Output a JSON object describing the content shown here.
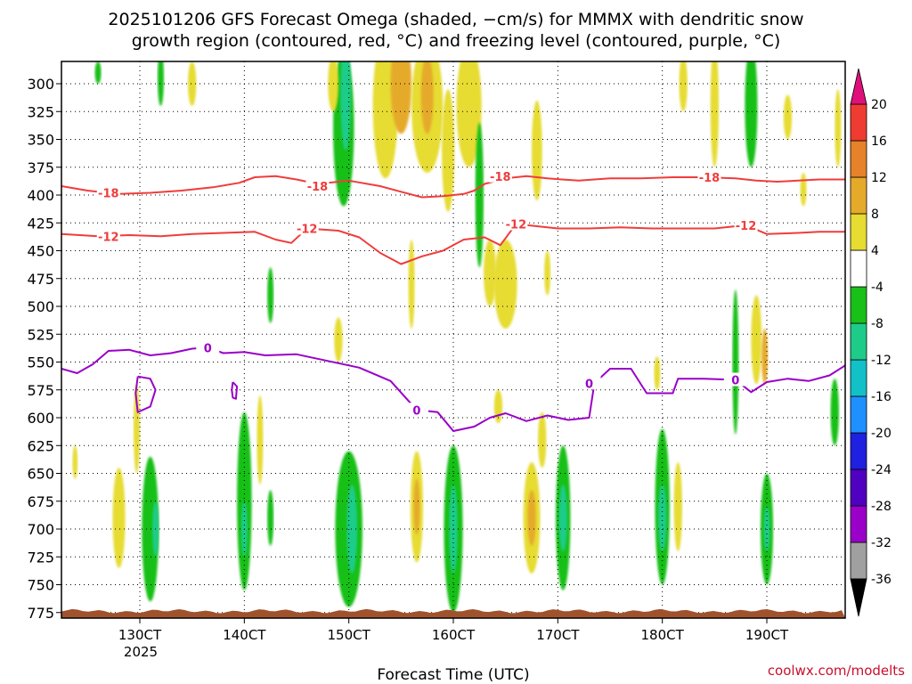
{
  "chart_data": {
    "type": "heatmap",
    "title_line1": "2025101206 GFS Forecast Omega (shaded, −cm/s) for MMMX with dendritic snow",
    "title_line2": "growth region (contoured, red, °C) and freezing level (contoured, purple, °C)",
    "xlabel": "Forecast Time (UTC)",
    "x_year_label": "2025",
    "credit": "coolwx.com/modelts",
    "xlim": [
      122.5,
      197.5
    ],
    "ylim": [
      780,
      280
    ],
    "y_ticks": [
      300,
      325,
      350,
      375,
      400,
      425,
      450,
      475,
      500,
      525,
      550,
      575,
      600,
      625,
      650,
      675,
      700,
      725,
      750,
      775
    ],
    "x_ticks": [
      {
        "x": 130,
        "label": "130CT"
      },
      {
        "x": 140,
        "label": "140CT"
      },
      {
        "x": 150,
        "label": "150CT"
      },
      {
        "x": 160,
        "label": "160CT"
      },
      {
        "x": 170,
        "label": "170CT"
      },
      {
        "x": 180,
        "label": "180CT"
      },
      {
        "x": 190,
        "label": "190CT"
      }
    ],
    "colorbar": {
      "levels": [
        -36,
        -32,
        -28,
        -24,
        -20,
        -16,
        -12,
        -8,
        -4,
        4,
        8,
        12,
        16,
        20
      ],
      "colors": [
        "#a0a0a0",
        "#9a00c8",
        "#5000c0",
        "#2020e0",
        "#1e90ff",
        "#12c0c8",
        "#1ecc8a",
        "#18c018",
        "#ffffff",
        "#e6dc32",
        "#e6aa2a",
        "#e6822a",
        "#ef3c32"
      ],
      "under_color": "#000000",
      "over_color": "#e0107a"
    },
    "omega_blobs": [
      {
        "x": 123.8,
        "p": 640,
        "dx": 0.25,
        "dp": 15,
        "v": 5
      },
      {
        "x": 128,
        "p": 690,
        "dx": 0.6,
        "dp": 45,
        "v": 6
      },
      {
        "x": 131,
        "p": 700,
        "dx": 0.8,
        "dp": 65,
        "v": -6
      },
      {
        "x": 131.5,
        "p": 700,
        "dx": 0.3,
        "dp": 25,
        "v": -9
      },
      {
        "x": 129.7,
        "p": 610,
        "dx": 0.3,
        "dp": 40,
        "v": 5
      },
      {
        "x": 140,
        "p": 675,
        "dx": 0.7,
        "dp": 80,
        "v": -6
      },
      {
        "x": 140,
        "p": 700,
        "dx": 0.3,
        "dp": 25,
        "v": -9
      },
      {
        "x": 141.5,
        "p": 620,
        "dx": 0.3,
        "dp": 40,
        "v": 5
      },
      {
        "x": 142.5,
        "p": 690,
        "dx": 0.3,
        "dp": 25,
        "v": -6
      },
      {
        "x": 142.5,
        "p": 490,
        "dx": 0.3,
        "dp": 25,
        "v": -6
      },
      {
        "x": 150,
        "p": 700,
        "dx": 1.3,
        "dp": 70,
        "v": -6
      },
      {
        "x": 150.3,
        "p": 700,
        "dx": 0.5,
        "dp": 40,
        "v": -9
      },
      {
        "x": 149.5,
        "p": 340,
        "dx": 1.0,
        "dp": 70,
        "v": -6
      },
      {
        "x": 149.7,
        "p": 310,
        "dx": 0.5,
        "dp": 50,
        "v": -10
      },
      {
        "x": 148.5,
        "p": 300,
        "dx": 0.5,
        "dp": 25,
        "v": 5
      },
      {
        "x": 153.5,
        "p": 320,
        "dx": 1.2,
        "dp": 65,
        "v": 5
      },
      {
        "x": 155,
        "p": 300,
        "dx": 1.0,
        "dp": 45,
        "v": 9
      },
      {
        "x": 157.5,
        "p": 320,
        "dx": 1.5,
        "dp": 60,
        "v": 6
      },
      {
        "x": 157.5,
        "p": 310,
        "dx": 0.6,
        "dp": 35,
        "v": 10
      },
      {
        "x": 159.5,
        "p": 360,
        "dx": 0.6,
        "dp": 55,
        "v": 5
      },
      {
        "x": 161.5,
        "p": 320,
        "dx": 1.2,
        "dp": 55,
        "v": 5
      },
      {
        "x": 156,
        "p": 480,
        "dx": 0.3,
        "dp": 40,
        "v": 5
      },
      {
        "x": 149,
        "p": 530,
        "dx": 0.4,
        "dp": 20,
        "v": 5
      },
      {
        "x": 156.5,
        "p": 680,
        "dx": 0.6,
        "dp": 50,
        "v": 6
      },
      {
        "x": 156.5,
        "p": 680,
        "dx": 0.3,
        "dp": 25,
        "v": 10
      },
      {
        "x": 160,
        "p": 700,
        "dx": 0.9,
        "dp": 75,
        "v": -6
      },
      {
        "x": 160,
        "p": 700,
        "dx": 0.4,
        "dp": 40,
        "v": -10
      },
      {
        "x": 162.5,
        "p": 400,
        "dx": 0.4,
        "dp": 65,
        "v": -6
      },
      {
        "x": 163.5,
        "p": 470,
        "dx": 0.6,
        "dp": 30,
        "v": 5
      },
      {
        "x": 165,
        "p": 480,
        "dx": 1.1,
        "dp": 40,
        "v": 5
      },
      {
        "x": 164.3,
        "p": 590,
        "dx": 0.4,
        "dp": 15,
        "v": 5
      },
      {
        "x": 167.5,
        "p": 690,
        "dx": 0.8,
        "dp": 50,
        "v": 6
      },
      {
        "x": 167.5,
        "p": 690,
        "dx": 0.4,
        "dp": 25,
        "v": 10
      },
      {
        "x": 168.5,
        "p": 620,
        "dx": 0.4,
        "dp": 25,
        "v": 5
      },
      {
        "x": 170.5,
        "p": 690,
        "dx": 0.7,
        "dp": 65,
        "v": -6
      },
      {
        "x": 170.5,
        "p": 690,
        "dx": 0.4,
        "dp": 30,
        "v": -9
      },
      {
        "x": 168,
        "p": 360,
        "dx": 0.5,
        "dp": 45,
        "v": 5
      },
      {
        "x": 169,
        "p": 470,
        "dx": 0.3,
        "dp": 20,
        "v": 5
      },
      {
        "x": 180,
        "p": 680,
        "dx": 0.7,
        "dp": 70,
        "v": -6
      },
      {
        "x": 180,
        "p": 690,
        "dx": 0.4,
        "dp": 30,
        "v": -9
      },
      {
        "x": 181.5,
        "p": 680,
        "dx": 0.4,
        "dp": 40,
        "v": 5
      },
      {
        "x": 179.5,
        "p": 560,
        "dx": 0.3,
        "dp": 15,
        "v": 5
      },
      {
        "x": 182,
        "p": 300,
        "dx": 0.4,
        "dp": 25,
        "v": 5
      },
      {
        "x": 185,
        "p": 320,
        "dx": 0.4,
        "dp": 55,
        "v": 5
      },
      {
        "x": 188.5,
        "p": 320,
        "dx": 0.6,
        "dp": 55,
        "v": -6
      },
      {
        "x": 192,
        "p": 330,
        "dx": 0.4,
        "dp": 20,
        "v": 5
      },
      {
        "x": 187,
        "p": 550,
        "dx": 0.3,
        "dp": 65,
        "v": -6
      },
      {
        "x": 189,
        "p": 530,
        "dx": 0.5,
        "dp": 40,
        "v": 5
      },
      {
        "x": 189.8,
        "p": 545,
        "dx": 0.3,
        "dp": 25,
        "v": 10
      },
      {
        "x": 190,
        "p": 700,
        "dx": 0.6,
        "dp": 50,
        "v": -6
      },
      {
        "x": 190,
        "p": 700,
        "dx": 0.3,
        "dp": 20,
        "v": -9
      },
      {
        "x": 193.5,
        "p": 395,
        "dx": 0.3,
        "dp": 15,
        "v": 5
      },
      {
        "x": 196.5,
        "p": 595,
        "dx": 0.4,
        "dp": 30,
        "v": -6
      },
      {
        "x": 196.8,
        "p": 340,
        "dx": 0.3,
        "dp": 35,
        "v": 5
      },
      {
        "x": 126,
        "p": 290,
        "dx": 0.3,
        "dp": 10,
        "v": -6
      },
      {
        "x": 132,
        "p": 295,
        "dx": 0.3,
        "dp": 25,
        "v": -6
      },
      {
        "x": 135,
        "p": 300,
        "dx": 0.4,
        "dp": 20,
        "v": 5
      }
    ],
    "contours": [
      {
        "name": "dgz -18",
        "color": "#f03c3c",
        "label": "-18",
        "label_at": [
          [
            127,
            398
          ],
          [
            147,
            392
          ],
          [
            164.5,
            383
          ],
          [
            184.5,
            384
          ]
        ],
        "points": [
          [
            122.5,
            392
          ],
          [
            125,
            396
          ],
          [
            128,
            399
          ],
          [
            131,
            398
          ],
          [
            134,
            396
          ],
          [
            137,
            393
          ],
          [
            139.5,
            389
          ],
          [
            141,
            384
          ],
          [
            143,
            383
          ],
          [
            145,
            386
          ],
          [
            147,
            390
          ],
          [
            150,
            387
          ],
          [
            153,
            392
          ],
          [
            155,
            397
          ],
          [
            157,
            402
          ],
          [
            159,
            401
          ],
          [
            161,
            399
          ],
          [
            162,
            396
          ],
          [
            163,
            390
          ],
          [
            165,
            385
          ],
          [
            167,
            383
          ],
          [
            169,
            385
          ],
          [
            172,
            387
          ],
          [
            175,
            385
          ],
          [
            178,
            385
          ],
          [
            181,
            384
          ],
          [
            184,
            384
          ],
          [
            187,
            385
          ],
          [
            189,
            387
          ],
          [
            191,
            388
          ],
          [
            193,
            387
          ],
          [
            195,
            386
          ],
          [
            197.5,
            386
          ]
        ]
      },
      {
        "name": "dgz -12",
        "color": "#f03c3c",
        "label": "-12",
        "label_at": [
          [
            127,
            437
          ],
          [
            146,
            430
          ],
          [
            166,
            426
          ],
          [
            188,
            427
          ]
        ],
        "points": [
          [
            122.5,
            435
          ],
          [
            126,
            437
          ],
          [
            129,
            436
          ],
          [
            132,
            437
          ],
          [
            135,
            435
          ],
          [
            138,
            434
          ],
          [
            141,
            433
          ],
          [
            143,
            440
          ],
          [
            144.5,
            443
          ],
          [
            146,
            430
          ],
          [
            149,
            432
          ],
          [
            151,
            438
          ],
          [
            153,
            452
          ],
          [
            155,
            462
          ],
          [
            157,
            455
          ],
          [
            159,
            450
          ],
          [
            161,
            440
          ],
          [
            163,
            438
          ],
          [
            164.5,
            445
          ],
          [
            166,
            426
          ],
          [
            168,
            428
          ],
          [
            170,
            430
          ],
          [
            173,
            430
          ],
          [
            176,
            429
          ],
          [
            179,
            430
          ],
          [
            182,
            430
          ],
          [
            185,
            430
          ],
          [
            188,
            427
          ],
          [
            190,
            435
          ],
          [
            193,
            434
          ],
          [
            195,
            433
          ],
          [
            197.5,
            433
          ]
        ]
      },
      {
        "name": "freezing level 0",
        "color": "#9a00c8",
        "label": "0",
        "label_at": [
          [
            136.5,
            537
          ],
          [
            156.5,
            593
          ],
          [
            173,
            569
          ],
          [
            187,
            566
          ]
        ],
        "points": [
          [
            122.5,
            556
          ],
          [
            124,
            560
          ],
          [
            125.5,
            552
          ],
          [
            127,
            540
          ],
          [
            129,
            539
          ],
          [
            131,
            544
          ],
          [
            133,
            542
          ],
          [
            135,
            538
          ],
          [
            136.5,
            537
          ],
          [
            138,
            542
          ],
          [
            140,
            541
          ],
          [
            142,
            544
          ],
          [
            145,
            543
          ],
          [
            148,
            549
          ],
          [
            151,
            555
          ],
          [
            154,
            567
          ],
          [
            156.5,
            593
          ],
          [
            158.5,
            595
          ],
          [
            160,
            612
          ],
          [
            162,
            608
          ],
          [
            163.5,
            600
          ],
          [
            165,
            596
          ],
          [
            167,
            603
          ],
          [
            169,
            598
          ],
          [
            171,
            602
          ],
          [
            173,
            600
          ],
          [
            173.5,
            569
          ],
          [
            175,
            556
          ],
          [
            177,
            556
          ],
          [
            178.5,
            578
          ],
          [
            181,
            578
          ],
          [
            181.5,
            565
          ],
          [
            184,
            565
          ],
          [
            187,
            566
          ],
          [
            188.5,
            577
          ],
          [
            190,
            568
          ],
          [
            192,
            565
          ],
          [
            194,
            567
          ],
          [
            196,
            562
          ],
          [
            197.5,
            553
          ]
        ]
      },
      {
        "name": "freezing level 0 closed a",
        "color": "#9a00c8",
        "label": "",
        "label_at": [],
        "points": [
          [
            129.8,
            563
          ],
          [
            131,
            565
          ],
          [
            131.5,
            575
          ],
          [
            131,
            590
          ],
          [
            129.8,
            595
          ],
          [
            129.6,
            578
          ],
          [
            129.8,
            563
          ]
        ]
      },
      {
        "name": "freezing level 0 closed b",
        "color": "#9a00c8",
        "label": "",
        "label_at": [],
        "points": [
          [
            138.9,
            568
          ],
          [
            139.3,
            572
          ],
          [
            139.2,
            583
          ],
          [
            138.9,
            582
          ],
          [
            138.8,
            575
          ],
          [
            138.9,
            568
          ]
        ]
      }
    ],
    "terrain": {
      "color": "#a0522d",
      "p_top": 773
    }
  }
}
